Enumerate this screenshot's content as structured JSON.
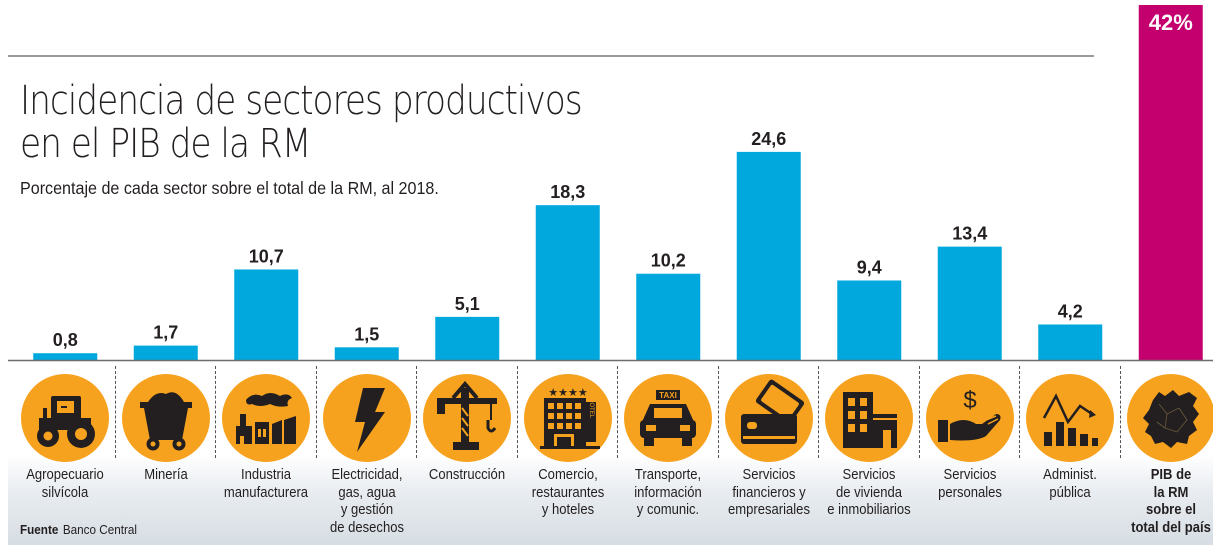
{
  "header": {
    "title_line1": "Incidencia de sectores productivos",
    "title_line2": "en el PIB de la RM",
    "subtitle": "Porcentaje de cada sector sobre el total de la RM, al 2018."
  },
  "source": {
    "label": "Fuente",
    "value": "Banco Central"
  },
  "colors": {
    "bar": "#00a8dd",
    "highlight": "#c4006e",
    "icon_circle": "#f6a21e",
    "icon_glyph": "#231f20"
  },
  "chart_data": {
    "type": "bar",
    "title": "Incidencia de sectores productivos en el PIB de la RM",
    "subtitle": "Porcentaje de cada sector sobre el total de la RM, al 2018.",
    "xlabel": "",
    "ylabel": "",
    "unit": "%",
    "decimal_separator": ",",
    "grid": false,
    "categories": [
      "Agropecuario silvícola",
      "Minería",
      "Industria manufacturera",
      "Electricidad, gas, agua y gestión de desechos",
      "Construcción",
      "Comercio, restaurantes y hoteles",
      "Transporte, información y comunic.",
      "Servicios financieros y empresariales",
      "Servicios de vivienda e inmobiliarios",
      "Servicios personales",
      "Administ. pública",
      "PIB de la RM sobre el total del país"
    ],
    "values": [
      0.8,
      1.7,
      10.7,
      1.5,
      5.1,
      18.3,
      10.2,
      24.6,
      9.4,
      13.4,
      4.2,
      42
    ],
    "value_labels": [
      "0,8",
      "1,7",
      "10,7",
      "1,5",
      "5,1",
      "18,3",
      "10,2",
      "24,6",
      "9,4",
      "13,4",
      "4,2",
      "42%"
    ],
    "highlighted_index": 11,
    "ylim": [
      0,
      42
    ]
  },
  "categories": [
    {
      "lines": [
        "Agropecuario",
        "silvícola"
      ],
      "icon": "tractor-icon",
      "bold": false
    },
    {
      "lines": [
        "Minería"
      ],
      "icon": "mine-cart-icon",
      "bold": false
    },
    {
      "lines": [
        "Industria",
        "manufacturera"
      ],
      "icon": "factory-icon",
      "bold": false
    },
    {
      "lines": [
        "Electricidad,",
        "gas, agua",
        "y gestión",
        "de desechos"
      ],
      "icon": "lightning-bolt-icon",
      "bold": false
    },
    {
      "lines": [
        "Construcción"
      ],
      "icon": "crane-icon",
      "bold": false
    },
    {
      "lines": [
        "Comercio,",
        "restaurantes",
        "y hoteles"
      ],
      "icon": "hotel-icon",
      "bold": false
    },
    {
      "lines": [
        "Transporte,",
        "información",
        "y comunic."
      ],
      "icon": "taxi-icon",
      "bold": false
    },
    {
      "lines": [
        "Servicios",
        "financieros y",
        "empresariales"
      ],
      "icon": "credit-card-icon",
      "bold": false
    },
    {
      "lines": [
        "Servicios",
        "de vivienda",
        "e inmobiliarios"
      ],
      "icon": "buildings-icon",
      "bold": false
    },
    {
      "lines": [
        "Servicios",
        "personales"
      ],
      "icon": "hand-dollar-icon",
      "bold": false
    },
    {
      "lines": [
        "Administ.",
        "pública"
      ],
      "icon": "bar-chart-trend-icon",
      "bold": false
    },
    {
      "lines": [
        "PIB de",
        "la RM",
        "sobre el",
        "total del país"
      ],
      "icon": "region-map-icon",
      "bold": true
    }
  ],
  "icon_glyphs": {
    "taxi_sign": "TAXI",
    "hotel_sign": "HOTEL",
    "dollar_sign": "$"
  }
}
